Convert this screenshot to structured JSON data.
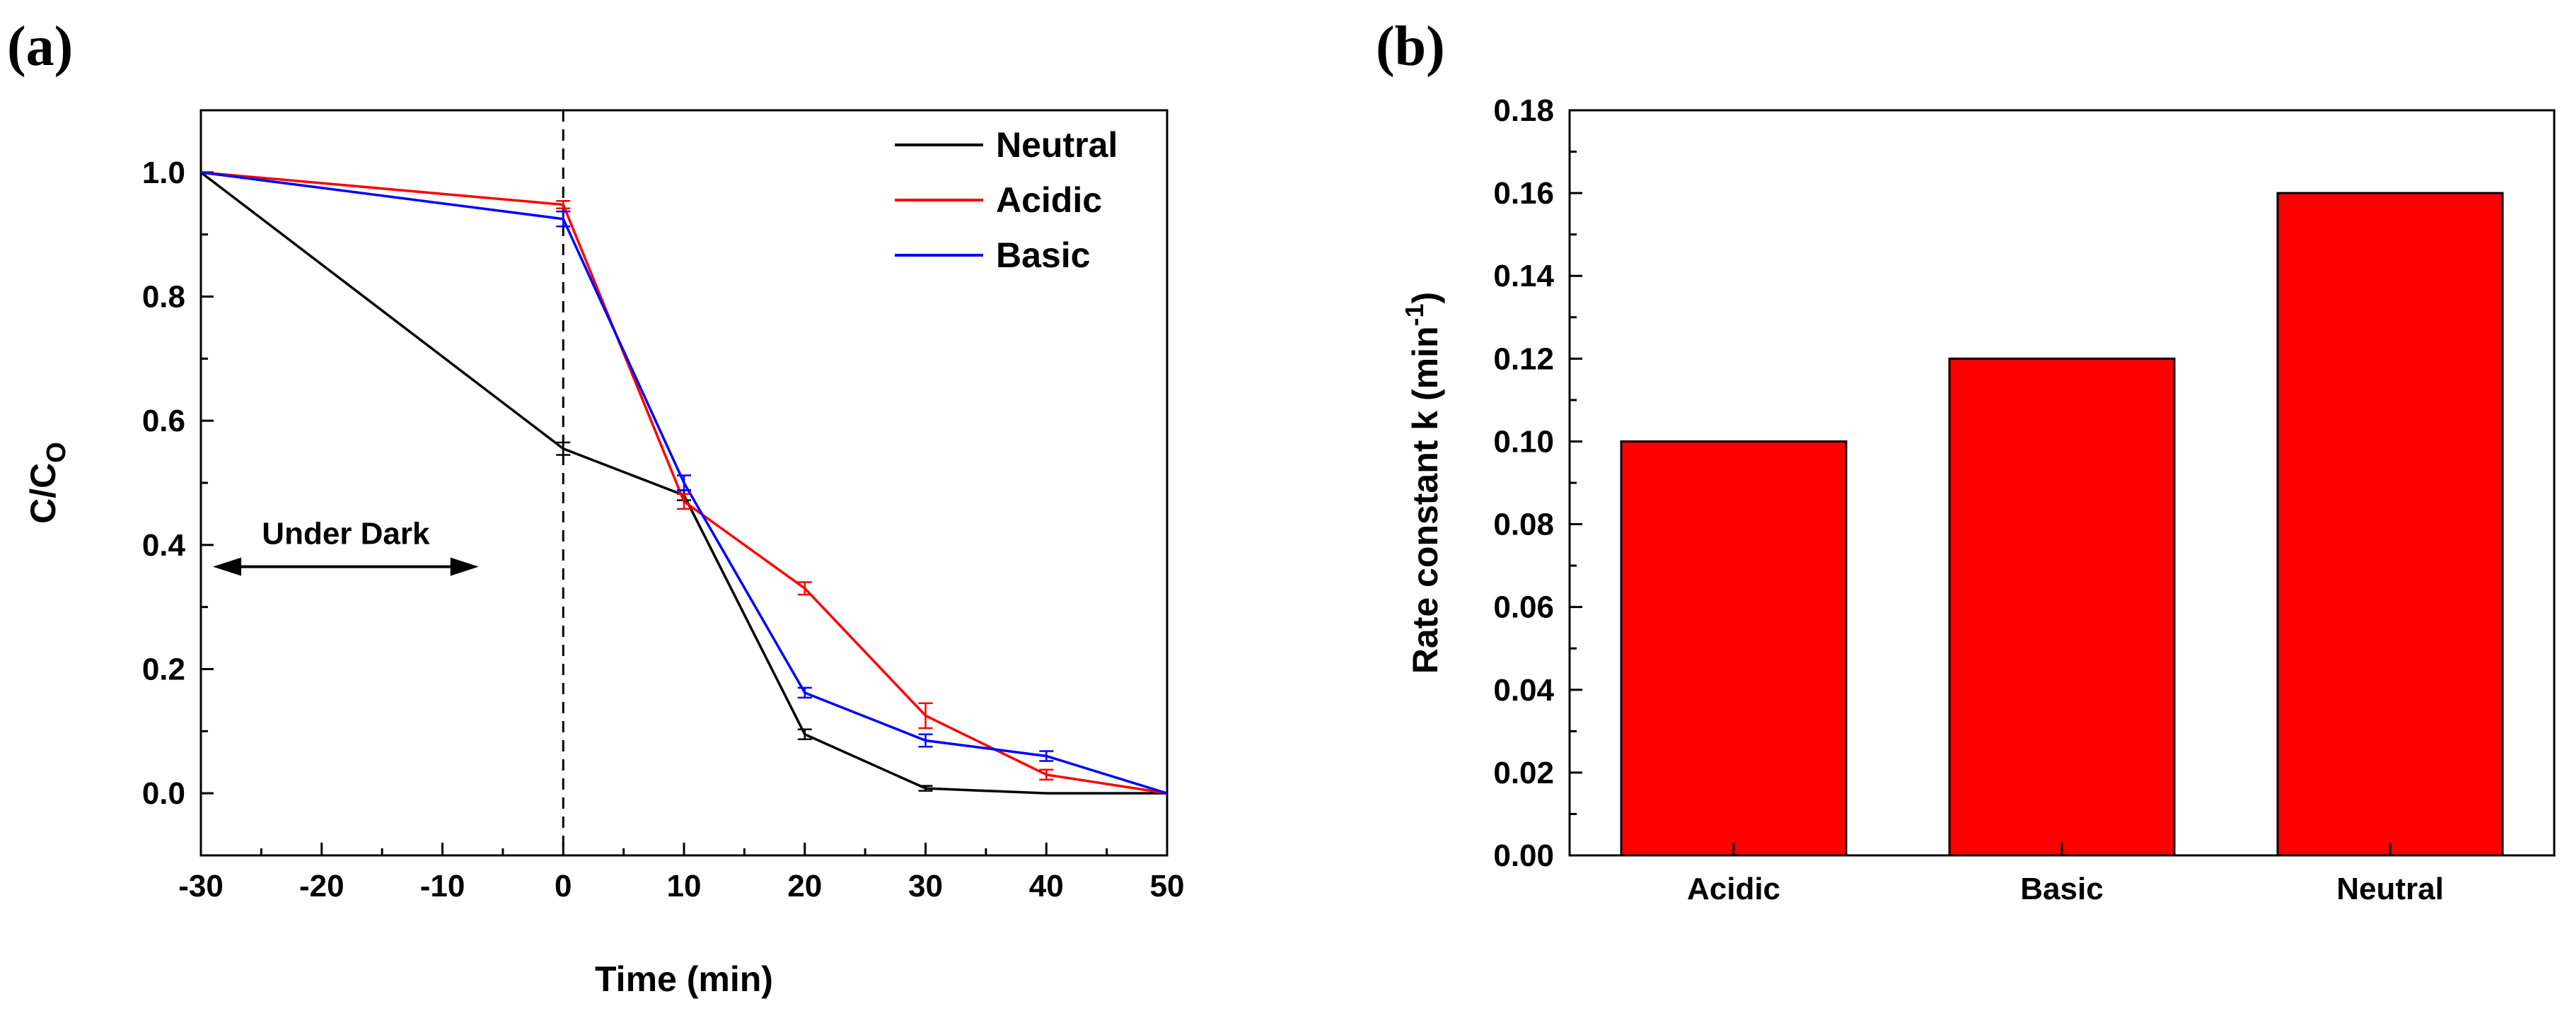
{
  "panel_labels": {
    "a": "(a)",
    "b": "(b)"
  },
  "chart_data": [
    {
      "type": "line",
      "panel": "(a)",
      "xlabel": "Time (min)",
      "ylabel_main": "C/C",
      "ylabel_sub": "O",
      "xlim": [
        -30,
        50
      ],
      "ylim": [
        -0.1,
        1.1
      ],
      "xticks": [
        "-30",
        "-20",
        "-10",
        "0",
        "10",
        "20",
        "30",
        "40",
        "50"
      ],
      "yticks": [
        "0.0",
        "0.2",
        "0.4",
        "0.6",
        "0.8",
        "1.0"
      ],
      "grid": false,
      "legend_position": "top-right",
      "x": [
        -30,
        0,
        10,
        20,
        30,
        40,
        50
      ],
      "series": [
        {
          "name": "Neutral",
          "color": "#000000",
          "values": [
            1.0,
            0.555,
            0.48,
            0.095,
            0.008,
            0.0,
            0.0
          ],
          "errors": [
            0,
            0.01,
            0.008,
            0.008,
            0.004,
            0,
            0
          ]
        },
        {
          "name": "Acidic",
          "color": "#ff0000",
          "values": [
            1.0,
            0.948,
            0.47,
            0.33,
            0.125,
            0.03,
            0.0
          ],
          "errors": [
            0,
            0.006,
            0.012,
            0.01,
            0.02,
            0.008,
            0
          ]
        },
        {
          "name": "Basic",
          "color": "#0000ff",
          "values": [
            1.0,
            0.925,
            0.5,
            0.162,
            0.085,
            0.06,
            0.0
          ],
          "errors": [
            0,
            0.012,
            0.012,
            0.008,
            0.01,
            0.008,
            0
          ]
        }
      ],
      "vline_x": 0,
      "annotation": {
        "text": "Under Dark",
        "x_from": -29,
        "x_to": -7,
        "y": 0.365
      }
    },
    {
      "type": "bar",
      "panel": "(b)",
      "categories": [
        "Acidic",
        "Basic",
        "Neutral"
      ],
      "values": [
        0.1,
        0.12,
        0.16
      ],
      "bar_color": "#ff0000",
      "ylabel_main": "Rate constant k (min",
      "ylabel_sup": "-1",
      "ylabel_end": ")",
      "xlabel": "",
      "ylim": [
        0,
        0.18
      ],
      "yticks": [
        "0.00",
        "0.02",
        "0.04",
        "0.06",
        "0.08",
        "0.10",
        "0.12",
        "0.14",
        "0.16",
        "0.18"
      ],
      "grid": false
    }
  ]
}
